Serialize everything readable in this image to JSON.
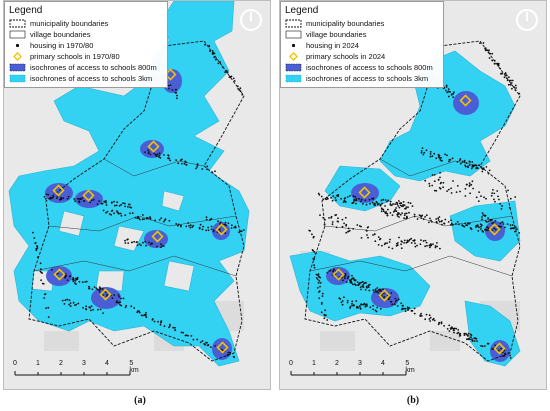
{
  "legend_title": "Legend",
  "colors": {
    "map_background": "#e9e9e9",
    "isochrone_3km": "#33d1f2",
    "isochrone_800m": "#4a5fd6",
    "housing": "#111111",
    "school_marker": "#f2c200"
  },
  "panels": [
    {
      "caption": "(a)",
      "legend": [
        {
          "symbol": "dashed-boundary",
          "label": "municipality boundaries"
        },
        {
          "symbol": "solid-boundary",
          "label": "village boundaries"
        },
        {
          "symbol": "dot",
          "label": "housing in 1970/80"
        },
        {
          "symbol": "diamond",
          "label": "primary schools in 1970/80"
        },
        {
          "symbol": "iso-800",
          "label": "isochrones of access to schools 800m"
        },
        {
          "symbol": "iso-3k",
          "label": "isochrones of access to schools 3km"
        }
      ]
    },
    {
      "caption": "(b)",
      "legend": [
        {
          "symbol": "dashed-boundary",
          "label": "municipality boundaries"
        },
        {
          "symbol": "solid-boundary",
          "label": "village boundaries"
        },
        {
          "symbol": "dot",
          "label": "housing in 2024"
        },
        {
          "symbol": "diamond",
          "label": "primary schools in 2024"
        },
        {
          "symbol": "iso-800",
          "label": "isochrones of access to schools 800m"
        },
        {
          "symbol": "iso-3k",
          "label": "isochrones of access to schools 3km"
        }
      ]
    }
  ],
  "scale_bar": {
    "ticks": [
      "0",
      "1",
      "2",
      "3",
      "4",
      "5 km"
    ]
  }
}
